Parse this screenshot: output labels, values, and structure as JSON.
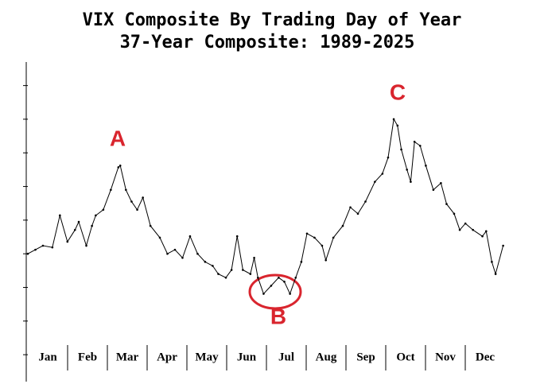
{
  "chart_data": {
    "type": "line",
    "title": "VIX Composite By Trading Day of Year",
    "subtitle": "37-Year Composite: 1989-2025",
    "categories": [
      "Jan",
      "Feb",
      "Mar",
      "Apr",
      "May",
      "Jun",
      "Jul",
      "Aug",
      "Sep",
      "Oct",
      "Nov",
      "Dec"
    ],
    "x": [
      0,
      4,
      8,
      13,
      17,
      21,
      25,
      27,
      31,
      34,
      36,
      40,
      44,
      48,
      49,
      52,
      55,
      58,
      61,
      65,
      70,
      74,
      78,
      82,
      86,
      90,
      94,
      98,
      101,
      105,
      108,
      111,
      114,
      118,
      120,
      122,
      125,
      129,
      133,
      136,
      139,
      142,
      145,
      148,
      152,
      156,
      158,
      162,
      167,
      171,
      175,
      179,
      184,
      188,
      191,
      194,
      196,
      198,
      201,
      203,
      205,
      208,
      211,
      215,
      219,
      222,
      226,
      229,
      232,
      236,
      241,
      243,
      246,
      248,
      252
    ],
    "values": [
      3.0,
      3.12,
      3.24,
      3.19,
      4.14,
      3.36,
      3.71,
      3.95,
      3.24,
      3.83,
      4.14,
      4.31,
      4.9,
      5.57,
      5.62,
      4.9,
      4.55,
      4.31,
      4.67,
      3.83,
      3.48,
      3.0,
      3.12,
      2.88,
      3.52,
      3.0,
      2.76,
      2.64,
      2.4,
      2.29,
      2.52,
      3.52,
      2.52,
      2.4,
      2.88,
      2.29,
      1.81,
      2.05,
      2.29,
      2.17,
      1.81,
      2.29,
      2.76,
      3.6,
      3.48,
      3.24,
      2.81,
      3.48,
      3.83,
      4.38,
      4.19,
      4.55,
      5.14,
      5.38,
      5.86,
      7.0,
      6.81,
      6.1,
      5.5,
      5.14,
      6.33,
      6.21,
      5.62,
      4.9,
      5.1,
      4.48,
      4.19,
      3.71,
      3.9,
      3.71,
      3.52,
      3.67,
      2.76,
      2.4,
      3.24
    ],
    "color": "#000000",
    "xlim": [
      0,
      253
    ],
    "ylim": [
      -0.8,
      8.7
    ],
    "yticks": [
      0,
      1,
      2,
      3,
      4,
      5,
      6,
      7,
      8
    ],
    "annotations": [
      "A",
      "B",
      "C"
    ]
  }
}
